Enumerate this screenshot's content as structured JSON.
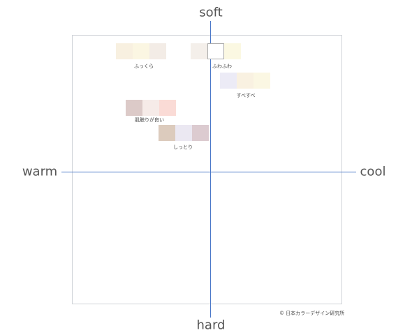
{
  "axes": {
    "top": "soft",
    "bottom": "hard",
    "left": "warm",
    "right": "cool"
  },
  "groups": [
    {
      "label": "ふっくら"
    },
    {
      "label": "ふわふわ"
    },
    {
      "label": "すべすべ"
    },
    {
      "label": "肌触りが良い"
    },
    {
      "label": "しっとり"
    }
  ],
  "copyright": "© 日本カラーデザイン研究所"
}
